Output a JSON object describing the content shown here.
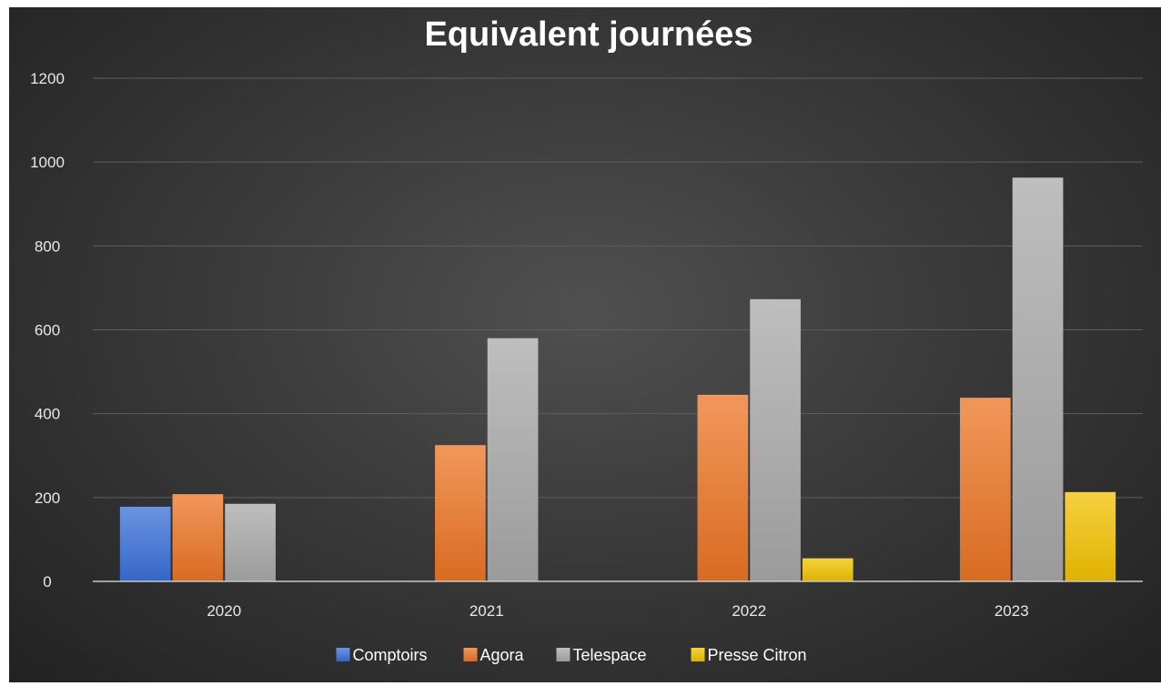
{
  "chart_data": {
    "type": "bar",
    "title": "Equivalent journées",
    "xlabel": "",
    "ylabel": "",
    "categories": [
      "2020",
      "2021",
      "2022",
      "2023"
    ],
    "ylim": [
      0,
      1200
    ],
    "yticks": [
      0,
      200,
      400,
      600,
      800,
      1000,
      1200
    ],
    "grid": true,
    "legend_position": "bottom",
    "series": [
      {
        "name": "Comptoirs",
        "color": "#3a6fd8",
        "values": [
          178,
          null,
          null,
          null
        ]
      },
      {
        "name": "Agora",
        "color": "#ec7424",
        "values": [
          208,
          325,
          445,
          438
        ]
      },
      {
        "name": "Telespace",
        "color": "#a8a8a8",
        "values": [
          185,
          580,
          673,
          963
        ]
      },
      {
        "name": "Presse Citron",
        "color": "#f2c200",
        "values": [
          null,
          null,
          55,
          213
        ]
      }
    ]
  }
}
